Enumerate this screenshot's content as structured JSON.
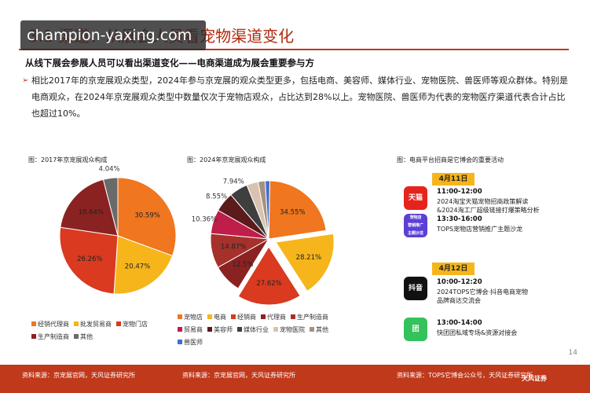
{
  "header": {
    "title": "3.1 渠道：从展会人员看宠物渠道变化",
    "watermark": "champion-yaxing.com"
  },
  "subtitle": "从线下展会参展人员可以看出渠道变化——电商渠道成为展会重要参与方",
  "bullet": "相比2017年的京宠展观众类型，2024年参与京宠展的观众类型更多，包括电商、美容师、媒体行业、宠物医院、兽医师等观众群体。特别是电商观众，在2024年京宠展观众类型中数量仅次于宠物店观众，占比达到28%以上。宠物医院、兽医师为代表的宠物医疗渠道代表合计占比也超过10%。",
  "figures": {
    "left_label": "图：2017年京宠展观众构成",
    "mid_label": "图：2024年京宠展观众构成",
    "right_label": "图：电商平台招商是它博会的重要活动"
  },
  "colors": {
    "accent": "#c0391b",
    "pet_store": "#f0761f",
    "ecommerce": "#f6b51b",
    "distributor": "#d93a20",
    "agent": "#8b2222",
    "manufacturer": "#a6312b",
    "trade": "#bf1d4a",
    "groomer": "#5c1a1a",
    "media": "#3f3f3f",
    "hospital": "#d9c3b0",
    "other": "#a89080",
    "vet": "#3f6fd0"
  },
  "chart_data": [
    {
      "type": "pie",
      "title": "图：2017年京宠展观众构成",
      "slices": [
        {
          "name": "经销代理商",
          "value": 30.59,
          "label": "30.59%",
          "color": "#f0761f"
        },
        {
          "name": "批发贸易商",
          "value": 20.47,
          "label": "20.47%",
          "color": "#f6b51b"
        },
        {
          "name": "宠物门店",
          "value": 26.26,
          "label": "26.26%",
          "color": "#d93a20"
        },
        {
          "name": "生产制造商",
          "value": 18.64,
          "label": "18.64%",
          "color": "#8b2222"
        },
        {
          "name": "其他",
          "value": 4.04,
          "label": "4.04%",
          "color": "#6a6a6a"
        }
      ],
      "legend": [
        "经销代理商",
        "批发贸易商",
        "宠物门店",
        "生产制造商",
        "其他"
      ]
    },
    {
      "type": "pie",
      "title": "图：2024年京宠展观众构成",
      "slices": [
        {
          "name": "宠物店",
          "value": 34.55,
          "label": "34.55%",
          "color": "#f0761f"
        },
        {
          "name": "电商",
          "value": 28.21,
          "label": "28.21%",
          "color": "#f6b51b"
        },
        {
          "name": "经销商",
          "value": 27.62,
          "label": "27.62%",
          "color": "#d93a20"
        },
        {
          "name": "代理商",
          "value": 12.5,
          "label": "12.5%",
          "color": "#8b2222"
        },
        {
          "name": "生产制造商",
          "value": 14.87,
          "label": "14.87%",
          "color": "#a6312b"
        },
        {
          "name": "贸易商",
          "value": 10.36,
          "label": "10.36%",
          "color": "#bf1d4a"
        },
        {
          "name": "美容师",
          "value": 8.55,
          "label": "8.55%",
          "color": "#5c1a1a"
        },
        {
          "name": "媒体行业",
          "value": 7.94,
          "label": "7.94%",
          "color": "#3f3f3f"
        },
        {
          "name": "宠物医院",
          "value": 5.0,
          "label": "",
          "color": "#d9c3b0"
        },
        {
          "name": "其他",
          "value": 3.0,
          "label": "",
          "color": "#a89080"
        },
        {
          "name": "兽医师",
          "value": 2.0,
          "label": "",
          "color": "#3f6fd0"
        }
      ],
      "legend": [
        "宠物店",
        "电商",
        "经销商",
        "代理商",
        "生产制造商",
        "贸易商",
        "美容师",
        "媒体行业",
        "宠物医院",
        "其他",
        "兽医师"
      ]
    }
  ],
  "events": [
    {
      "date": "4月11日"
    },
    {
      "time": "11:00-12:00",
      "desc": "2024淘宝天猫宠物招商政策解读\n&2024淘工厂超级链接打爆策略分析",
      "icon_text": "天猫",
      "icon_color": "#e6231c",
      "icon_name": "tmall-icon"
    },
    {
      "time": "13:30-16:00",
      "desc": "TOPS宠物店营销推广主题沙龙",
      "icon_text": "宠物店\n营销推广\n主题沙龙",
      "icon_color": "#5b3fd6",
      "icon_name": "salon-icon"
    },
    {
      "date": "4月12日"
    },
    {
      "time": "10:00-12:20",
      "desc": "2024TOPS它博会·抖音电商宠物\n品牌商达交流会",
      "icon_text": "抖音",
      "icon_color": "#111111",
      "icon_name": "douyin-icon"
    },
    {
      "time": "13:00-14:00",
      "desc": "快团团私域专场&资源对接会",
      "icon_text": "团",
      "icon_color": "#34c25a",
      "icon_name": "kuaituantuan-icon"
    }
  ],
  "page_number": "14",
  "footer": {
    "source_left": "资料来源：京宠展官网，天风证券研究所",
    "source_mid": "资料来源：京宠展官网，天风证券研究所",
    "source_right": "资料来源：TOPS它博会公众号，天风证券研究所",
    "logo": "天风证券"
  }
}
